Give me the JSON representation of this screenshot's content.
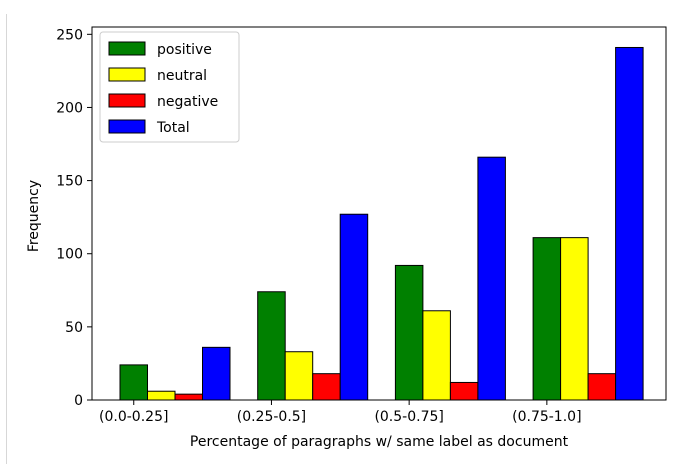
{
  "chart_data": {
    "type": "bar",
    "title": "",
    "xlabel": "Percentage of paragraphs w/ same label as document",
    "ylabel": "Frequency",
    "categories": [
      "(0.0-0.25]",
      "(0.25-0.5]",
      "(0.5-0.75]",
      "(0.75-1.0]"
    ],
    "ylim": [
      0,
      255
    ],
    "yticks": [
      0,
      50,
      100,
      150,
      200,
      250
    ],
    "grid": false,
    "legend_position": "top-left",
    "series": [
      {
        "name": "positive",
        "color": "#008000",
        "values": [
          24,
          74,
          92,
          111
        ]
      },
      {
        "name": "neutral",
        "color": "#ffff00",
        "values": [
          6,
          33,
          61,
          111
        ]
      },
      {
        "name": "negative",
        "color": "#ff0000",
        "values": [
          4,
          18,
          12,
          18
        ]
      },
      {
        "name": "Total",
        "color": "#0000ff",
        "values": [
          36,
          127,
          166,
          241
        ]
      }
    ]
  }
}
